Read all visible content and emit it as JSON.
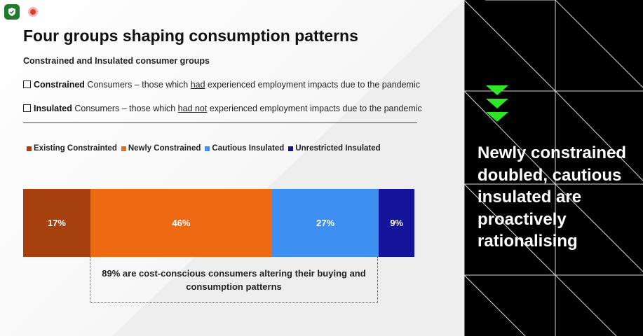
{
  "toolbar": {
    "shield_icon": "shield-check-icon",
    "record_icon": "record-icon"
  },
  "slide": {
    "title": "Four groups shaping consumption patterns",
    "subtitle": "Constrained and Insulated consumer groups",
    "definitions": [
      {
        "term": "Constrained",
        "pre": " Consumers – those which ",
        "emph": "had",
        "post": " experienced employment impacts due to the pandemic"
      },
      {
        "term": "Insulated",
        "pre": " Consumers – those which ",
        "emph": "had not",
        "post": " experienced employment impacts due to the pandemic"
      }
    ],
    "annotation": "89% are cost-conscious consumers altering their buying and consumption patterns"
  },
  "chart_data": {
    "type": "bar",
    "orientation": "horizontal-stacked",
    "categories": [
      "Existing Constrainted",
      "Newly Constrained",
      "Cautious Insulated",
      "Unrestricted Insulated"
    ],
    "values": [
      17,
      46,
      27,
      9
    ],
    "labels": [
      "17%",
      "46%",
      "27%",
      "9%"
    ],
    "colors": [
      "#a6400c",
      "#ee6a12",
      "#3d8ff2",
      "#14149a"
    ],
    "legend_position": "top"
  },
  "side_panel": {
    "lines": [
      "Newly constrained",
      "doubled, cautious",
      "insulated are",
      "proactively",
      "rationalising"
    ],
    "accent_color": "#2ee626"
  }
}
